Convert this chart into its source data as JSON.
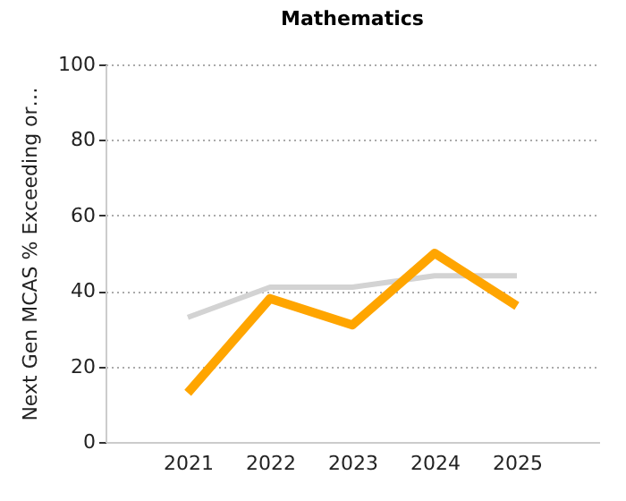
{
  "chart_data": {
    "type": "line",
    "title": "Mathematics",
    "ylabel": "Next Gen MCAS % Exceeding or…",
    "categories": [
      "2021",
      "2022",
      "2023",
      "2024",
      "2025"
    ],
    "series": [
      {
        "color": "#d3d3d3",
        "values": [
          33,
          41,
          41,
          44,
          44
        ]
      },
      {
        "color": "#ffa500",
        "values": [
          13,
          38,
          31,
          50,
          36
        ]
      }
    ],
    "ylim": [
      0,
      100
    ],
    "yticks": [
      0,
      20,
      40,
      60,
      80,
      100
    ],
    "grid": "y",
    "marker": "none",
    "line_style": "solid"
  }
}
